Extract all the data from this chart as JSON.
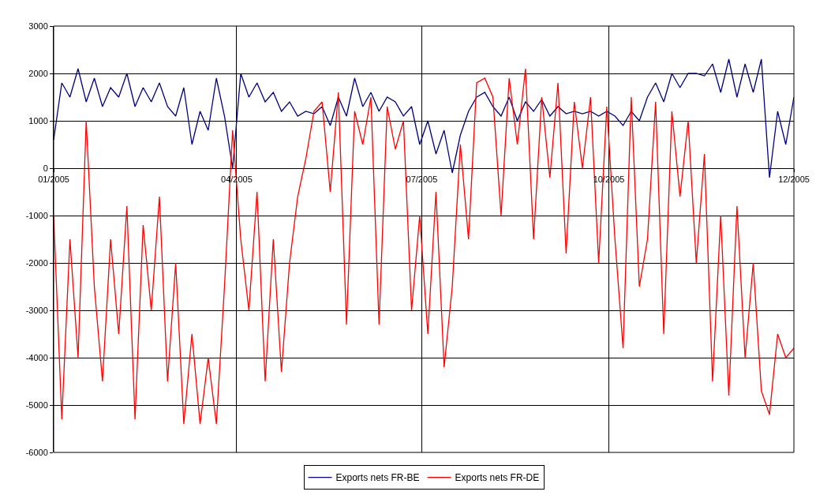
{
  "chart_data": {
    "type": "line",
    "x": [
      "2005-01-01",
      "2005-01-05",
      "2005-01-09",
      "2005-01-13",
      "2005-01-17",
      "2005-01-21",
      "2005-01-25",
      "2005-01-29",
      "2005-02-02",
      "2005-02-06",
      "2005-02-10",
      "2005-02-14",
      "2005-02-18",
      "2005-02-22",
      "2005-02-26",
      "2005-03-02",
      "2005-03-06",
      "2005-03-10",
      "2005-03-14",
      "2005-03-18",
      "2005-03-22",
      "2005-03-26",
      "2005-03-30",
      "2005-04-03",
      "2005-04-07",
      "2005-04-11",
      "2005-04-15",
      "2005-04-19",
      "2005-04-23",
      "2005-04-27",
      "2005-05-01",
      "2005-05-05",
      "2005-05-09",
      "2005-05-13",
      "2005-05-17",
      "2005-05-21",
      "2005-05-25",
      "2005-05-29",
      "2005-06-02",
      "2005-06-06",
      "2005-06-10",
      "2005-06-14",
      "2005-06-18",
      "2005-06-22",
      "2005-06-26",
      "2005-06-30",
      "2005-07-04",
      "2005-07-08",
      "2005-07-12",
      "2005-07-16",
      "2005-07-20",
      "2005-07-24",
      "2005-07-28",
      "2005-08-01",
      "2005-08-05",
      "2005-08-09",
      "2005-08-13",
      "2005-08-17",
      "2005-08-21",
      "2005-08-25",
      "2005-08-29",
      "2005-09-02",
      "2005-09-06",
      "2005-09-10",
      "2005-09-14",
      "2005-09-18",
      "2005-09-22",
      "2005-09-26",
      "2005-09-30",
      "2005-10-04",
      "2005-10-08",
      "2005-10-12",
      "2005-10-16",
      "2005-10-20",
      "2005-10-24",
      "2005-10-28",
      "2005-11-01",
      "2005-11-05",
      "2005-11-09",
      "2005-11-13",
      "2005-11-17",
      "2005-11-21",
      "2005-11-25",
      "2005-11-29",
      "2005-12-03",
      "2005-12-07",
      "2005-12-11",
      "2005-12-15",
      "2005-12-19",
      "2005-12-23",
      "2005-12-27",
      "2005-12-31"
    ],
    "series": [
      {
        "name": "Exports nets FR-BE",
        "color": "#000080",
        "values": [
          600,
          1800,
          1500,
          2100,
          1400,
          1900,
          1300,
          1700,
          1500,
          2000,
          1300,
          1700,
          1400,
          1800,
          1300,
          1100,
          1700,
          500,
          1200,
          800,
          1900,
          1100,
          0,
          2000,
          1500,
          1800,
          1400,
          1600,
          1200,
          1400,
          1100,
          1200,
          1150,
          1300,
          900,
          1500,
          1100,
          1900,
          1300,
          1600,
          1200,
          1500,
          1400,
          1100,
          1300,
          500,
          1000,
          300,
          800,
          -100,
          700,
          1200,
          1500,
          1600,
          1300,
          1100,
          1500,
          1000,
          1400,
          1200,
          1450,
          1100,
          1300,
          1150,
          1200,
          1150,
          1200,
          1100,
          1200,
          1100,
          900,
          1200,
          1000,
          1500,
          1800,
          1400,
          2000,
          1700,
          2000,
          2000,
          1950,
          2200,
          1600,
          2300,
          1500,
          2200,
          1600,
          2300,
          -200,
          1200,
          500,
          1500
        ]
      },
      {
        "name": "Exports nets FR-DE",
        "color": "#ff0000",
        "values": [
          -1000,
          -5300,
          -1500,
          -4000,
          1000,
          -2500,
          -4500,
          -1500,
          -3500,
          -800,
          -5300,
          -1200,
          -3000,
          -600,
          -4500,
          -2000,
          -5400,
          -3500,
          -5400,
          -4000,
          -5400,
          -2500,
          800,
          -1500,
          -3000,
          -500,
          -4500,
          -1500,
          -4300,
          -2000,
          -600,
          200,
          1200,
          1400,
          -500,
          1600,
          -3300,
          1200,
          500,
          1500,
          -3300,
          1300,
          400,
          1000,
          -3000,
          -1000,
          -3500,
          -500,
          -4200,
          -2500,
          500,
          -1500,
          1800,
          1900,
          1500,
          -1000,
          1900,
          500,
          2100,
          -1500,
          1500,
          -200,
          1800,
          -1800,
          1400,
          0,
          1500,
          -2000,
          1300,
          -1500,
          -3800,
          1500,
          -2500,
          -1500,
          1400,
          -3500,
          1200,
          -600,
          1000,
          -2000,
          300,
          -4500,
          -1000,
          -4800,
          -800,
          -4000,
          -2000,
          -4700,
          -5200,
          -3500,
          -4000,
          -3800
        ]
      }
    ],
    "xlim": [
      "2005-01-01",
      "2005-12-31"
    ],
    "xticks": [
      {
        "value": "2005-01-01",
        "label": "01/2005"
      },
      {
        "value": "2005-04-01",
        "label": "04/2005"
      },
      {
        "value": "2005-07-01",
        "label": "07/2005"
      },
      {
        "value": "2005-10-01",
        "label": "10/2005"
      },
      {
        "value": "2005-12-31",
        "label": "12/2005"
      }
    ],
    "ylim": [
      -6000,
      3000
    ],
    "yticks": [
      -6000,
      -5000,
      -4000,
      -3000,
      -2000,
      -1000,
      0,
      1000,
      2000,
      3000
    ],
    "grid": true,
    "legend": "bottom",
    "line_style": "solid",
    "marker": "none"
  }
}
